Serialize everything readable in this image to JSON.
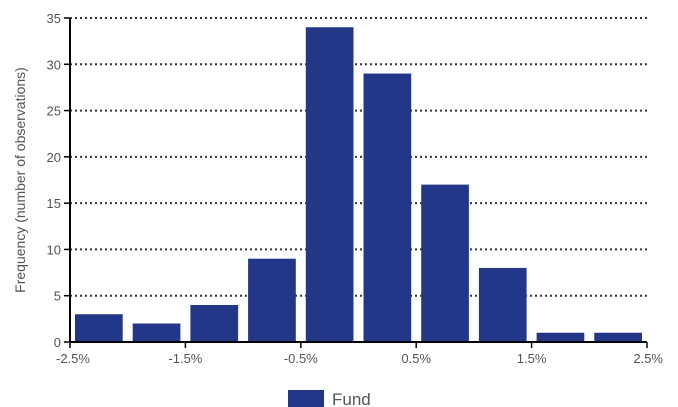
{
  "chart_data": {
    "type": "bar",
    "categories": [
      "-2.5% to -2.0%",
      "-2.0% to -1.5%",
      "-1.5% to -1.0%",
      "-1.0% to -0.5%",
      "-0.5% to 0.0%",
      "0.0% to 0.5%",
      "0.5% to 1.0%",
      "1.0% to 1.5%",
      "1.5% to 2.0%",
      "2.0% to 2.5%"
    ],
    "series": [
      {
        "name": "Fund",
        "values": [
          3,
          2,
          4,
          9,
          34,
          29,
          17,
          8,
          1,
          1
        ],
        "color": "#223787"
      }
    ],
    "title": "",
    "xlabel": "",
    "ylabel": "Frequency (number of observations)",
    "ylim": [
      0,
      35
    ],
    "yticks": [
      0,
      5,
      10,
      15,
      20,
      25,
      30,
      35
    ],
    "xlim": [
      -2.5,
      2.5
    ],
    "xticks": [
      -2.5,
      -1.5,
      -0.5,
      0.5,
      1.5,
      2.5
    ],
    "xtick_labels": [
      "-2.5%",
      "-1.5%",
      "-0.5%",
      "0.5%",
      "1.5%",
      "2.5%"
    ],
    "grid": "horizontal dotted",
    "legend": {
      "position": "bottom",
      "entries": [
        "Fund"
      ]
    }
  }
}
